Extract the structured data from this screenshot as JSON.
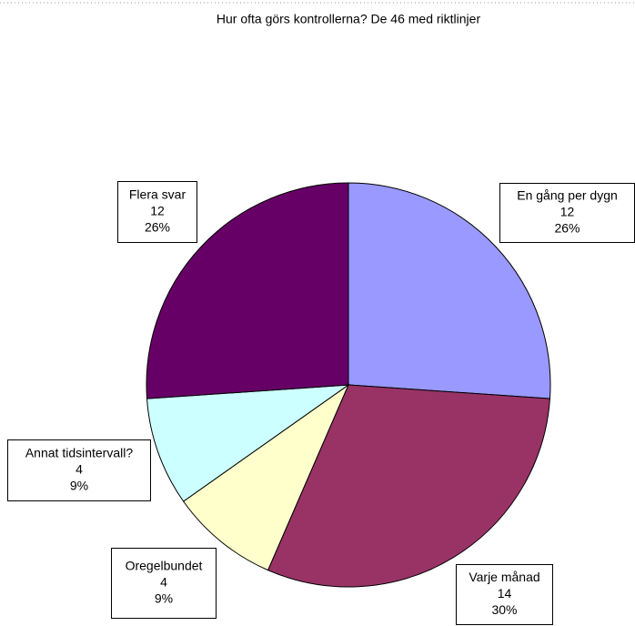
{
  "chart_data": {
    "type": "pie",
    "title": "Hur ofta görs kontrollerna? De 46 med riktlinjer",
    "categories": [
      "En gång per dygn",
      "Varje månad",
      "Oregelbundet",
      "Annat tidsintervall?",
      "Flera svar"
    ],
    "values": [
      12,
      14,
      4,
      4,
      12
    ],
    "percent_labels": [
      "26%",
      "30%",
      "9%",
      "9%",
      "26%"
    ],
    "colors": [
      "#9999ff",
      "#993366",
      "#ffffcc",
      "#ccffff",
      "#660066"
    ]
  }
}
